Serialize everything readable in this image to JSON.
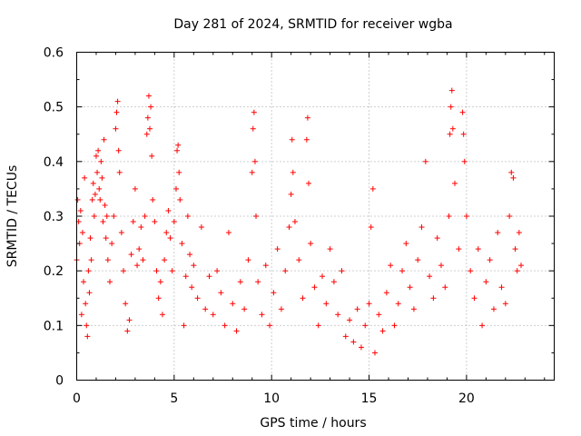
{
  "chart_data": {
    "type": "scatter",
    "title": "Day 281 of 2024, SRMTID for receiver wgba",
    "xlabel": "GPS time / hours",
    "ylabel": "SRMTID / TECUs",
    "xlim": [
      0,
      24.5
    ],
    "ylim": [
      0,
      0.6
    ],
    "grid": true,
    "marker": "+",
    "marker_color": "#ff0000",
    "xticks": [
      {
        "value": 0,
        "label": "0"
      },
      {
        "value": 5,
        "label": "5"
      },
      {
        "value": 10,
        "label": "10"
      },
      {
        "value": 15,
        "label": "15"
      },
      {
        "value": 20,
        "label": "20"
      }
    ],
    "yticks": [
      {
        "value": 0,
        "label": "0"
      },
      {
        "value": 0.1,
        "label": "0.1"
      },
      {
        "value": 0.2,
        "label": "0.2"
      },
      {
        "value": 0.3,
        "label": "0.3"
      },
      {
        "value": 0.4,
        "label": "0.4"
      },
      {
        "value": 0.5,
        "label": "0.5"
      },
      {
        "value": 0.6,
        "label": "0.6"
      }
    ],
    "series": [
      {
        "name": "SRMTID",
        "points": [
          [
            0.0,
            0.22
          ],
          [
            0.05,
            0.33
          ],
          [
            0.1,
            0.29
          ],
          [
            0.15,
            0.25
          ],
          [
            0.2,
            0.31
          ],
          [
            0.25,
            0.12
          ],
          [
            0.3,
            0.27
          ],
          [
            0.35,
            0.18
          ],
          [
            0.4,
            0.37
          ],
          [
            0.45,
            0.14
          ],
          [
            0.5,
            0.1
          ],
          [
            0.55,
            0.08
          ],
          [
            0.6,
            0.2
          ],
          [
            0.65,
            0.16
          ],
          [
            0.7,
            0.26
          ],
          [
            0.75,
            0.22
          ],
          [
            0.8,
            0.33
          ],
          [
            0.85,
            0.36
          ],
          [
            0.9,
            0.3
          ],
          [
            0.95,
            0.34
          ],
          [
            1.0,
            0.41
          ],
          [
            1.05,
            0.38
          ],
          [
            1.1,
            0.42
          ],
          [
            1.15,
            0.35
          ],
          [
            1.2,
            0.33
          ],
          [
            1.25,
            0.4
          ],
          [
            1.3,
            0.37
          ],
          [
            1.35,
            0.29
          ],
          [
            1.4,
            0.44
          ],
          [
            1.45,
            0.32
          ],
          [
            1.5,
            0.26
          ],
          [
            1.55,
            0.3
          ],
          [
            1.6,
            0.22
          ],
          [
            1.7,
            0.18
          ],
          [
            1.8,
            0.25
          ],
          [
            1.9,
            0.3
          ],
          [
            2.0,
            0.46
          ],
          [
            2.05,
            0.49
          ],
          [
            2.1,
            0.51
          ],
          [
            2.15,
            0.42
          ],
          [
            2.2,
            0.38
          ],
          [
            2.3,
            0.27
          ],
          [
            2.4,
            0.2
          ],
          [
            2.5,
            0.14
          ],
          [
            2.6,
            0.09
          ],
          [
            2.7,
            0.11
          ],
          [
            2.8,
            0.23
          ],
          [
            2.9,
            0.29
          ],
          [
            3.0,
            0.35
          ],
          [
            3.1,
            0.21
          ],
          [
            3.2,
            0.24
          ],
          [
            3.3,
            0.28
          ],
          [
            3.4,
            0.22
          ],
          [
            3.5,
            0.3
          ],
          [
            3.6,
            0.45
          ],
          [
            3.65,
            0.48
          ],
          [
            3.7,
            0.52
          ],
          [
            3.75,
            0.46
          ],
          [
            3.8,
            0.5
          ],
          [
            3.85,
            0.41
          ],
          [
            3.9,
            0.33
          ],
          [
            4.0,
            0.29
          ],
          [
            4.1,
            0.2
          ],
          [
            4.2,
            0.15
          ],
          [
            4.3,
            0.18
          ],
          [
            4.4,
            0.12
          ],
          [
            4.5,
            0.22
          ],
          [
            4.6,
            0.27
          ],
          [
            4.7,
            0.31
          ],
          [
            4.8,
            0.26
          ],
          [
            4.9,
            0.2
          ],
          [
            5.0,
            0.29
          ],
          [
            5.1,
            0.35
          ],
          [
            5.15,
            0.42
          ],
          [
            5.2,
            0.43
          ],
          [
            5.25,
            0.38
          ],
          [
            5.3,
            0.33
          ],
          [
            5.4,
            0.25
          ],
          [
            5.5,
            0.1
          ],
          [
            5.6,
            0.19
          ],
          [
            5.7,
            0.3
          ],
          [
            5.8,
            0.23
          ],
          [
            5.9,
            0.17
          ],
          [
            6.0,
            0.21
          ],
          [
            6.2,
            0.15
          ],
          [
            6.4,
            0.28
          ],
          [
            6.6,
            0.13
          ],
          [
            6.8,
            0.19
          ],
          [
            7.0,
            0.12
          ],
          [
            7.2,
            0.2
          ],
          [
            7.4,
            0.16
          ],
          [
            7.6,
            0.1
          ],
          [
            7.8,
            0.27
          ],
          [
            8.0,
            0.14
          ],
          [
            8.2,
            0.09
          ],
          [
            8.4,
            0.18
          ],
          [
            8.6,
            0.13
          ],
          [
            8.8,
            0.22
          ],
          [
            9.0,
            0.38
          ],
          [
            9.05,
            0.46
          ],
          [
            9.1,
            0.49
          ],
          [
            9.15,
            0.4
          ],
          [
            9.2,
            0.3
          ],
          [
            9.3,
            0.18
          ],
          [
            9.5,
            0.12
          ],
          [
            9.7,
            0.21
          ],
          [
            9.9,
            0.1
          ],
          [
            10.1,
            0.16
          ],
          [
            10.3,
            0.24
          ],
          [
            10.5,
            0.13
          ],
          [
            10.7,
            0.2
          ],
          [
            10.9,
            0.28
          ],
          [
            11.0,
            0.34
          ],
          [
            11.05,
            0.44
          ],
          [
            11.1,
            0.38
          ],
          [
            11.2,
            0.29
          ],
          [
            11.4,
            0.22
          ],
          [
            11.6,
            0.15
          ],
          [
            11.8,
            0.44
          ],
          [
            11.85,
            0.48
          ],
          [
            11.9,
            0.36
          ],
          [
            12.0,
            0.25
          ],
          [
            12.2,
            0.17
          ],
          [
            12.4,
            0.1
          ],
          [
            12.6,
            0.19
          ],
          [
            12.8,
            0.14
          ],
          [
            13.0,
            0.24
          ],
          [
            13.2,
            0.18
          ],
          [
            13.4,
            0.12
          ],
          [
            13.6,
            0.2
          ],
          [
            13.8,
            0.08
          ],
          [
            14.0,
            0.11
          ],
          [
            14.2,
            0.07
          ],
          [
            14.4,
            0.13
          ],
          [
            14.6,
            0.06
          ],
          [
            14.8,
            0.1
          ],
          [
            15.0,
            0.14
          ],
          [
            15.1,
            0.28
          ],
          [
            15.2,
            0.35
          ],
          [
            15.3,
            0.05
          ],
          [
            15.5,
            0.12
          ],
          [
            15.7,
            0.09
          ],
          [
            15.9,
            0.16
          ],
          [
            16.1,
            0.21
          ],
          [
            16.3,
            0.1
          ],
          [
            16.5,
            0.14
          ],
          [
            16.7,
            0.2
          ],
          [
            16.9,
            0.25
          ],
          [
            17.1,
            0.17
          ],
          [
            17.3,
            0.13
          ],
          [
            17.5,
            0.22
          ],
          [
            17.7,
            0.28
          ],
          [
            17.9,
            0.4
          ],
          [
            18.1,
            0.19
          ],
          [
            18.3,
            0.15
          ],
          [
            18.5,
            0.26
          ],
          [
            18.7,
            0.21
          ],
          [
            18.9,
            0.17
          ],
          [
            19.1,
            0.3
          ],
          [
            19.15,
            0.45
          ],
          [
            19.2,
            0.5
          ],
          [
            19.25,
            0.53
          ],
          [
            19.3,
            0.46
          ],
          [
            19.4,
            0.36
          ],
          [
            19.6,
            0.24
          ],
          [
            19.8,
            0.49
          ],
          [
            19.85,
            0.45
          ],
          [
            19.9,
            0.4
          ],
          [
            20.0,
            0.3
          ],
          [
            20.2,
            0.2
          ],
          [
            20.4,
            0.15
          ],
          [
            20.6,
            0.24
          ],
          [
            20.8,
            0.1
          ],
          [
            21.0,
            0.18
          ],
          [
            21.2,
            0.22
          ],
          [
            21.4,
            0.13
          ],
          [
            21.6,
            0.27
          ],
          [
            21.8,
            0.17
          ],
          [
            22.0,
            0.14
          ],
          [
            22.2,
            0.3
          ],
          [
            22.3,
            0.38
          ],
          [
            22.4,
            0.37
          ],
          [
            22.5,
            0.24
          ],
          [
            22.6,
            0.2
          ],
          [
            22.7,
            0.27
          ],
          [
            22.8,
            0.21
          ]
        ]
      }
    ]
  }
}
